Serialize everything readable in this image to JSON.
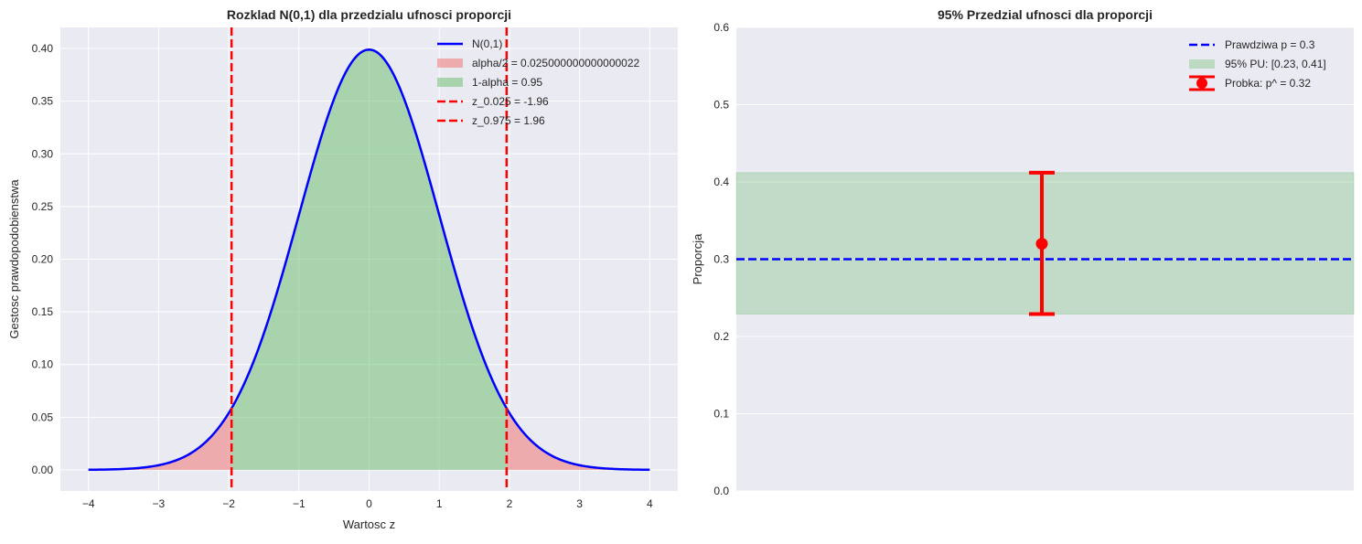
{
  "chart_data": [
    {
      "type": "area",
      "title": "Rozklad N(0,1) dla przedzialu ufnosci proporcji",
      "xlabel": "Wartosc z",
      "ylabel": "Gestosc prawdopodobienstwa",
      "xlim": [
        -4.4,
        4.4
      ],
      "ylim": [
        -0.02,
        0.42
      ],
      "xticks": [
        -4,
        -3,
        -2,
        -1,
        0,
        1,
        2,
        3,
        4
      ],
      "xtick_labels": [
        "−4",
        "−3",
        "−2",
        "−1",
        "0",
        "1",
        "2",
        "3",
        "4"
      ],
      "yticks": [
        0,
        0.05,
        0.1,
        0.15,
        0.2,
        0.25,
        0.3,
        0.35,
        0.4
      ],
      "ytick_labels": [
        "0.00",
        "0.05",
        "0.10",
        "0.15",
        "0.20",
        "0.25",
        "0.30",
        "0.35",
        "0.40"
      ],
      "curve": {
        "name": "N(0,1)",
        "x_range": [
          -4,
          4
        ],
        "mean": 0,
        "sd": 1,
        "color": "#0000ff"
      },
      "tail_fill": {
        "name": "alpha/2 = 0.025000000000000022",
        "color": "#f08080"
      },
      "center_fill": {
        "name": "1-alpha = 0.95",
        "color": "#66bb66"
      },
      "vlines": [
        {
          "name": "z_0.025 = -1.96",
          "x": -1.96,
          "color": "#ff0000"
        },
        {
          "name": "z_0.975 = 1.96",
          "x": 1.96,
          "color": "#ff0000"
        }
      ],
      "legend": [
        "N(0,1)",
        "alpha/2 = 0.025000000000000022",
        "1-alpha = 0.95",
        "z_0.025 = -1.96",
        "z_0.975 = 1.96"
      ],
      "legend_position": "top-right",
      "grid": true
    },
    {
      "type": "errorbar",
      "title": "95% Przedzial ufnosci dla proporcji",
      "ylabel": "Proporcja",
      "ylim": [
        0,
        0.6
      ],
      "xlim": [
        -0.5,
        0.5
      ],
      "yticks": [
        0,
        0.1,
        0.2,
        0.3,
        0.4,
        0.5,
        0.6
      ],
      "ytick_labels": [
        "0.0",
        "0.1",
        "0.2",
        "0.3",
        "0.4",
        "0.5",
        "0.6"
      ],
      "true_p": {
        "name": "Prawdziwa p = 0.3",
        "value": 0.3,
        "color": "#0000ff"
      },
      "ci_band": {
        "name": "95% PU: [0.23, 0.41]",
        "low": 0.229,
        "high": 0.412,
        "color": "#66bb66"
      },
      "sample": {
        "name": "Probka: p^ = 0.32",
        "x": 0,
        "value": 0.32,
        "low": 0.229,
        "high": 0.412,
        "color": "#ff0000"
      },
      "legend": [
        "Prawdziwa p = 0.3",
        "95% PU: [0.23, 0.41]",
        "Probka: p^ = 0.32"
      ],
      "legend_position": "top-right",
      "grid": true
    }
  ]
}
